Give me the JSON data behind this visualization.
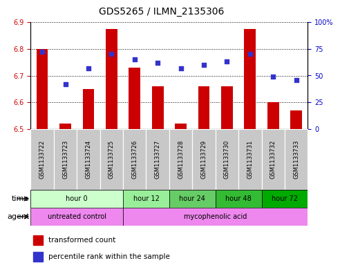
{
  "title": "GDS5265 / ILMN_2135306",
  "samples": [
    "GSM1133722",
    "GSM1133723",
    "GSM1133724",
    "GSM1133725",
    "GSM1133726",
    "GSM1133727",
    "GSM1133728",
    "GSM1133729",
    "GSM1133730",
    "GSM1133731",
    "GSM1133732",
    "GSM1133733"
  ],
  "transformed_counts": [
    6.8,
    6.52,
    6.65,
    6.875,
    6.73,
    6.66,
    6.52,
    6.66,
    6.66,
    6.875,
    6.6,
    6.57
  ],
  "percentile_ranks": [
    72,
    42,
    57,
    70,
    65,
    62,
    57,
    60,
    63,
    70,
    49,
    46
  ],
  "bar_base": 6.5,
  "ylim_left": [
    6.5,
    6.9
  ],
  "ylim_right": [
    0,
    100
  ],
  "yticks_left": [
    6.5,
    6.6,
    6.7,
    6.8,
    6.9
  ],
  "yticks_right": [
    0,
    25,
    50,
    75,
    100
  ],
  "ytick_labels_right": [
    "0",
    "25",
    "50",
    "75",
    "100%"
  ],
  "bar_color": "#cc0000",
  "dot_color": "#3333cc",
  "grid_color": "#000000",
  "time_groups": [
    {
      "label": "hour 0",
      "start": 0,
      "end": 4,
      "color": "#ccffcc"
    },
    {
      "label": "hour 12",
      "start": 4,
      "end": 6,
      "color": "#99ee99"
    },
    {
      "label": "hour 24",
      "start": 6,
      "end": 8,
      "color": "#66cc66"
    },
    {
      "label": "hour 48",
      "start": 8,
      "end": 10,
      "color": "#33bb33"
    },
    {
      "label": "hour 72",
      "start": 10,
      "end": 12,
      "color": "#00aa00"
    }
  ],
  "agent_group_untreated": {
    "label": "untreated control",
    "start": 0,
    "end": 4,
    "color": "#ee88ee"
  },
  "agent_group_myco": {
    "label": "mycophenolic acid",
    "start": 4,
    "end": 12,
    "color": "#ee88ee"
  },
  "legend_bar_label": "transformed count",
  "legend_dot_label": "percentile rank within the sample",
  "xlabel_time": "time",
  "xlabel_agent": "agent",
  "sample_bg_color": "#c8c8c8",
  "title_fontsize": 10,
  "tick_fontsize": 7,
  "bar_width": 0.5
}
